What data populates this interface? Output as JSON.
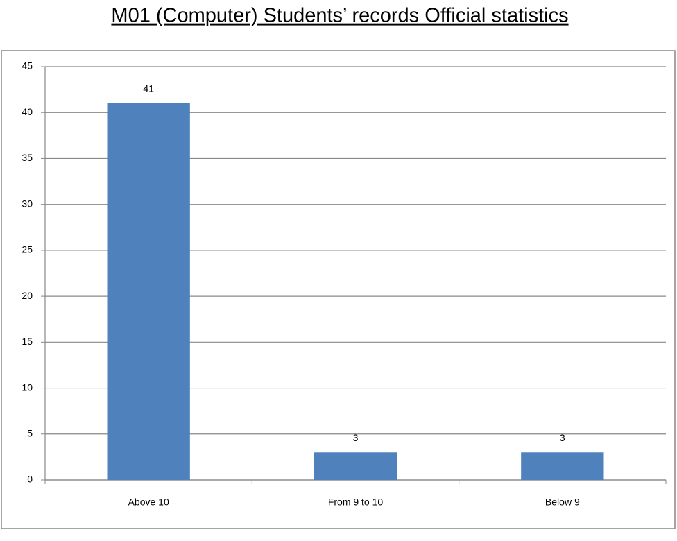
{
  "chart_data": {
    "type": "bar",
    "title": "M01 (Computer) Students’ records Official statistics",
    "categories": [
      "Above 10",
      "From 9 to 10",
      "Below 9"
    ],
    "values": [
      41,
      3,
      3
    ],
    "color": "#4f81bd",
    "ylim": [
      0,
      45
    ],
    "yticks": [
      0,
      5,
      10,
      15,
      20,
      25,
      30,
      35,
      40,
      45
    ],
    "grid": true
  }
}
